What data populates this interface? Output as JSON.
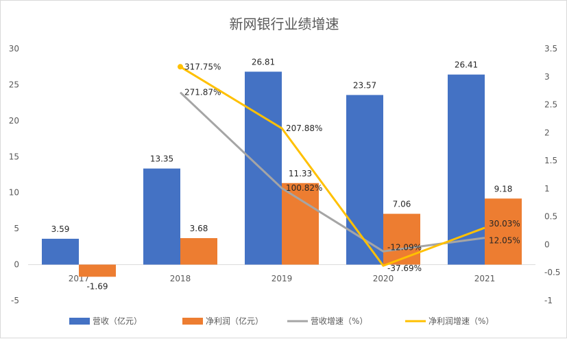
{
  "chart_data": {
    "type": "bar",
    "title": "新网银行业绩增速",
    "categories": [
      "2017",
      "2018",
      "2019",
      "2020",
      "2021"
    ],
    "series": [
      {
        "name": "营收（亿元）",
        "kind": "bar",
        "axis": "left",
        "color": "#4472C4",
        "values": [
          3.59,
          13.35,
          26.81,
          23.57,
          26.41
        ],
        "labels": [
          "3.59",
          "13.35",
          "26.81",
          "23.57",
          "26.41"
        ]
      },
      {
        "name": "净利润（亿元）",
        "kind": "bar",
        "axis": "left",
        "color": "#ED7D31",
        "values": [
          -1.69,
          3.68,
          11.33,
          7.06,
          9.18
        ],
        "labels": [
          "-1.69",
          "3.68",
          "11.33",
          "7.06",
          "9.18"
        ]
      },
      {
        "name": "营收增速（%）",
        "kind": "line",
        "axis": "right",
        "color": "#A5A5A5",
        "values": [
          null,
          2.7187,
          1.0082,
          -0.1209,
          0.1205
        ],
        "labels": [
          "",
          "271.87%",
          "100.82%",
          "-12.09%",
          "12.05%"
        ]
      },
      {
        "name": "净利润增速（%）",
        "kind": "line",
        "axis": "right",
        "color": "#FFC000",
        "values": [
          null,
          3.1775,
          2.0788,
          -0.3769,
          0.3003
        ],
        "labels": [
          "",
          "317.75%",
          "207.88%",
          "-37.69%",
          "30.03%"
        ]
      }
    ],
    "y_left": {
      "min": -5,
      "max": 30,
      "step": 5,
      "ticks": [
        "-5",
        "0",
        "5",
        "10",
        "15",
        "20",
        "25",
        "30"
      ]
    },
    "y_right": {
      "min": -1,
      "max": 3.5,
      "step": 0.5,
      "ticks": [
        "-1",
        "-0.5",
        "0",
        "0.5",
        "1",
        "1.5",
        "2",
        "2.5",
        "3",
        "3.5"
      ]
    },
    "grid": false,
    "legend_position": "bottom"
  }
}
